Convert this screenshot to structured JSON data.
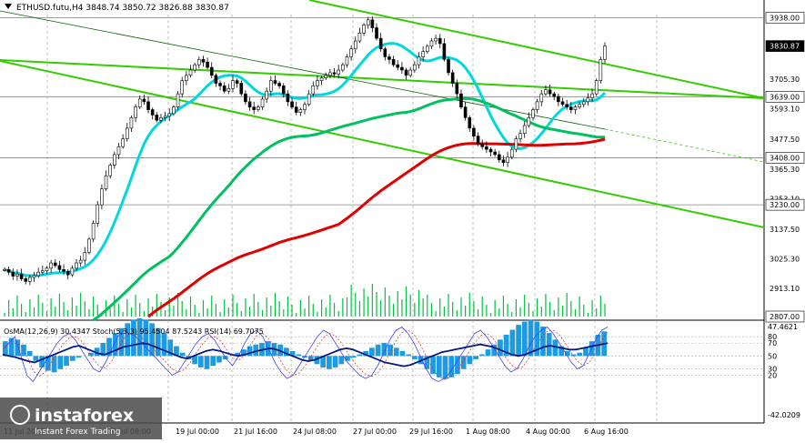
{
  "chart_data": {
    "type": "candlestick",
    "symbol_title": "ETHUSD.futu,H4  3848.74 3850.72 3826.88 3830.87",
    "price_axis": {
      "ylim": [
        2807,
        3950
      ],
      "ticks": [
        "3938.00",
        "3830.87",
        "3705.30",
        "3639.00",
        "3593.10",
        "3477.50",
        "3408.00",
        "3365.30",
        "3253.10",
        "3230.00",
        "3137.50",
        "3025.30",
        "2913.10",
        "2807.00"
      ],
      "tick_values": [
        3938,
        3830.87,
        3705.3,
        3639,
        3593.1,
        3477.5,
        3408,
        3365.3,
        3253.1,
        3230,
        3137.5,
        3025.3,
        2913.1,
        2807
      ],
      "boxed_levels": [
        {
          "label": "3938.00",
          "value": 3938,
          "style": "white"
        },
        {
          "label": "3830.87",
          "value": 3830.87,
          "style": "black"
        },
        {
          "label": "3639.00",
          "value": 3639,
          "style": "white"
        },
        {
          "label": "3408.00",
          "value": 3408,
          "style": "white"
        },
        {
          "label": "3230.00",
          "value": 3230,
          "style": "white"
        },
        {
          "label": "2807.00",
          "value": 2807,
          "style": "white"
        }
      ],
      "horizontal_levels": [
        3938,
        3639,
        3408,
        3230
      ]
    },
    "close_series": [
      2985,
      2975,
      2960,
      2968,
      2950,
      2940,
      2955,
      2962,
      2975,
      2980,
      2990,
      3010,
      3000,
      2985,
      2978,
      2965,
      2990,
      3010,
      3020,
      3050,
      3100,
      3160,
      3230,
      3290,
      3340,
      3380,
      3420,
      3450,
      3480,
      3520,
      3560,
      3600,
      3630,
      3620,
      3590,
      3570,
      3550,
      3560,
      3565,
      3575,
      3600,
      3650,
      3700,
      3720,
      3740,
      3760,
      3780,
      3770,
      3750,
      3720,
      3690,
      3680,
      3660,
      3670,
      3700,
      3690,
      3650,
      3620,
      3600,
      3590,
      3600,
      3630,
      3660,
      3700,
      3690,
      3680,
      3650,
      3620,
      3600,
      3580,
      3590,
      3610,
      3650,
      3680,
      3700,
      3710,
      3720,
      3730,
      3725,
      3740,
      3760,
      3790,
      3820,
      3850,
      3880,
      3910,
      3930,
      3900,
      3860,
      3820,
      3790,
      3780,
      3760,
      3750,
      3740,
      3720,
      3740,
      3760,
      3790,
      3810,
      3830,
      3850,
      3860,
      3840,
      3780,
      3730,
      3690,
      3650,
      3600,
      3560,
      3520,
      3490,
      3460,
      3450,
      3440,
      3430,
      3420,
      3400,
      3390,
      3410,
      3440,
      3480,
      3500,
      3530,
      3560,
      3590,
      3620,
      3650,
      3665,
      3650,
      3640,
      3620,
      3610,
      3600,
      3590,
      3600,
      3610,
      3620,
      3635,
      3650,
      3700,
      3780,
      3831
    ],
    "moving_averages": [
      {
        "color": "#00d8e0",
        "period_hint": "fast"
      },
      {
        "color": "#00c060",
        "period_hint": "medium"
      },
      {
        "color": "#e00000",
        "period_hint": "slow"
      }
    ],
    "channel_lines": [
      {
        "color": "#33cc00",
        "points": [
          [
            0,
            3920
          ],
          [
            440,
            3650
          ]
        ],
        "dashed": false
      },
      {
        "color": "#33cc00",
        "points": [
          [
            0,
            3740
          ],
          [
            440,
            3140
          ]
        ],
        "dashed": false
      }
    ],
    "oscillator": {
      "label": "OsMA(12,26,9) 30.4347  Stoch(5,3,3) 95.4504 87.5243  RSI(14) 69.7075",
      "ticks": [
        "47.4621",
        "80",
        "70",
        "50",
        "30",
        "20",
        "-42.0209"
      ],
      "tick_values": [
        47.4621,
        80,
        70,
        50,
        30,
        20,
        -42.0209
      ],
      "histogram": [
        18,
        22,
        20,
        14,
        6,
        -6,
        -14,
        -18,
        -20,
        -16,
        -12,
        -6,
        -2,
        0,
        4,
        10,
        16,
        22,
        28,
        34,
        40,
        44,
        46,
        44,
        40,
        34,
        28,
        20,
        12,
        4,
        -4,
        -10,
        -14,
        -16,
        -12,
        -8,
        -4,
        0,
        4,
        8,
        12,
        14,
        16,
        18,
        16,
        14,
        10,
        6,
        2,
        -2,
        -6,
        -10,
        -14,
        -16,
        -14,
        -10,
        -6,
        -2,
        2,
        6,
        10,
        14,
        16,
        14,
        10,
        6,
        2,
        -4,
        -10,
        -16,
        -22,
        -26,
        -28,
        -26,
        -22,
        -16,
        -10,
        -4,
        2,
        8,
        14,
        20,
        26,
        32,
        38,
        42,
        44,
        42,
        36,
        28,
        20,
        12,
        6,
        2,
        4,
        10,
        18,
        26,
        30
      ],
      "stoch_main": [
        60,
        70,
        80,
        50,
        20,
        10,
        25,
        40,
        55,
        70,
        80,
        85,
        75,
        60,
        45,
        30,
        25,
        40,
        60,
        80,
        90,
        85,
        80,
        70,
        60,
        50,
        40,
        30,
        20,
        25,
        40,
        55,
        70,
        80,
        85,
        75,
        60,
        45,
        35,
        50,
        70,
        85,
        90,
        80,
        60,
        40,
        25,
        15,
        20,
        35,
        50,
        65,
        80,
        90,
        85,
        70,
        55,
        40,
        30,
        20,
        15,
        20,
        35,
        55,
        75,
        90,
        95,
        85,
        70,
        50,
        30,
        15,
        10,
        15,
        25,
        40,
        55,
        70,
        85,
        90,
        80,
        65,
        50,
        35,
        25,
        30,
        45,
        65,
        80,
        90,
        95,
        85,
        70,
        55,
        40,
        30,
        35,
        55,
        75,
        90,
        95
      ],
      "rsi": [
        52,
        50,
        48,
        45,
        42,
        40,
        44,
        48,
        52,
        56,
        60,
        64,
        66,
        62,
        58,
        54,
        52,
        56,
        60,
        64,
        66,
        68,
        70,
        68,
        64,
        60,
        56,
        52,
        48,
        46,
        50,
        54,
        58,
        60,
        58,
        55,
        52,
        50,
        52,
        55,
        58,
        60,
        62,
        60,
        56,
        52,
        48,
        44,
        42,
        44,
        48,
        52,
        56,
        60,
        62,
        60,
        56,
        52,
        48,
        44,
        40,
        38,
        36,
        34,
        36,
        40,
        44,
        48,
        52,
        56,
        58,
        60,
        62,
        64,
        66,
        68,
        66,
        64,
        60,
        56,
        52,
        50,
        52,
        56,
        60,
        64,
        66,
        64,
        62,
        60,
        60,
        62,
        64,
        66,
        68,
        70
      ]
    },
    "x_ticks": [
      "11 Jul 2025",
      "16 Jul 08:00",
      "19 Jul 00:00",
      "21 Jul 16:00",
      "24 Jul 08:00",
      "27 Jul 00:00",
      "29 Jul 16:00",
      "1 Aug 08:00",
      "4 Aug 00:00",
      "6 Aug 16:00"
    ],
    "watermark": {
      "text": "instaforex",
      "subtitle": "Instant Forex Trading"
    }
  }
}
